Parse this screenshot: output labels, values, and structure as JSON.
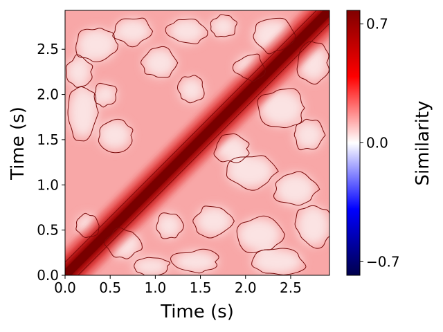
{
  "chart_data": {
    "type": "heatmap",
    "title": "",
    "xlabel": "Time (s)",
    "ylabel": "Time (s)",
    "xlim": [
      0.0,
      2.93
    ],
    "ylim": [
      0.0,
      2.93
    ],
    "xticks": [
      0.0,
      0.5,
      1.0,
      1.5,
      2.0,
      2.5
    ],
    "xtick_labels": [
      "0.0",
      "0.5",
      "1.0",
      "1.5",
      "2.0",
      "2.5"
    ],
    "yticks": [
      0.0,
      0.5,
      1.0,
      1.5,
      2.0,
      2.5
    ],
    "ytick_labels": [
      "0.0",
      "0.5",
      "1.0",
      "1.5",
      "2.0",
      "2.5"
    ],
    "colorbar": {
      "label": "Similarity",
      "colormap": "seismic",
      "range": [
        -0.78,
        0.78
      ],
      "ticks": [
        -0.7,
        0.0,
        0.7
      ],
      "tick_labels": [
        "−0.7",
        "0.0",
        "0.7"
      ]
    },
    "diagonal_value": 0.78,
    "off_diagonal_typical_range": [
      0.05,
      0.35
    ],
    "diagonal_band_halfwidth_s": 0.09,
    "contour_color": "#7a0a0a",
    "grid": false
  }
}
